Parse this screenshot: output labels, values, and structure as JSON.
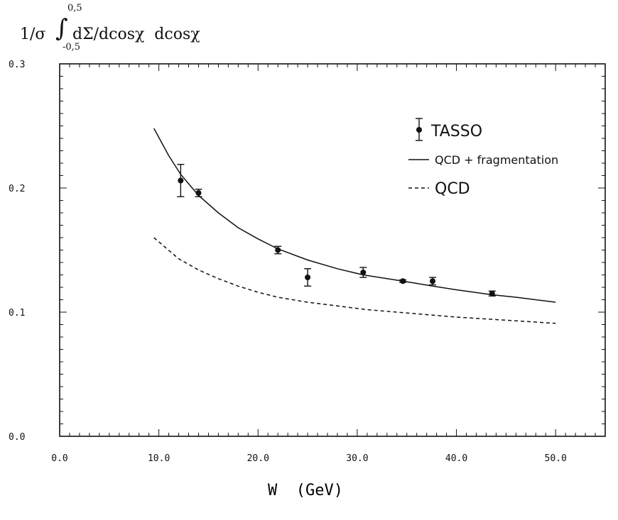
{
  "chart_data": {
    "type": "line",
    "ylabel": {
      "prefix": "1/σ",
      "integrand": "dΣ/dcosχ  dcosχ",
      "upper_limit": "0,5",
      "lower_limit": "-0,5"
    },
    "xlabel": "W  (GeV)",
    "xlim": [
      0,
      55
    ],
    "ylim": [
      0,
      0.3
    ],
    "x_ticks": [
      "0.0",
      "10.0",
      "20.0",
      "30.0",
      "40.0",
      "50.0"
    ],
    "y_ticks": [
      "0.0",
      "0.1",
      "0.2",
      "0.3"
    ],
    "grid": false,
    "legend_position": "top-right",
    "series": [
      {
        "name": "TASSO",
        "kind": "points-with-errorbars",
        "points": [
          {
            "x": 12.2,
            "y": 0.206,
            "err": 0.013
          },
          {
            "x": 14.0,
            "y": 0.196,
            "err": 0.003
          },
          {
            "x": 22.0,
            "y": 0.15,
            "err": 0.003
          },
          {
            "x": 25.0,
            "y": 0.128,
            "err": 0.007
          },
          {
            "x": 30.6,
            "y": 0.132,
            "err": 0.004
          },
          {
            "x": 34.6,
            "y": 0.125,
            "err": 0.001
          },
          {
            "x": 37.6,
            "y": 0.125,
            "err": 0.003
          },
          {
            "x": 43.6,
            "y": 0.115,
            "err": 0.002
          }
        ]
      },
      {
        "name": "QCD + fragmentation",
        "kind": "line-solid",
        "x": [
          9.5,
          11,
          12.2,
          14,
          16,
          18,
          20,
          22,
          25,
          28,
          30.6,
          34.6,
          37.6,
          40,
          43.6,
          46,
          50
        ],
        "y": [
          0.248,
          0.226,
          0.211,
          0.194,
          0.18,
          0.168,
          0.159,
          0.151,
          0.142,
          0.135,
          0.13,
          0.125,
          0.121,
          0.118,
          0.114,
          0.112,
          0.108
        ]
      },
      {
        "name": "QCD",
        "kind": "line-dashed",
        "x": [
          9.5,
          12,
          14,
          16,
          18,
          20,
          22,
          25,
          28,
          31,
          34,
          37,
          40,
          44,
          48,
          50
        ],
        "y": [
          0.16,
          0.143,
          0.134,
          0.127,
          0.121,
          0.116,
          0.112,
          0.108,
          0.105,
          0.102,
          0.1,
          0.098,
          0.096,
          0.094,
          0.092,
          0.091
        ]
      }
    ]
  }
}
